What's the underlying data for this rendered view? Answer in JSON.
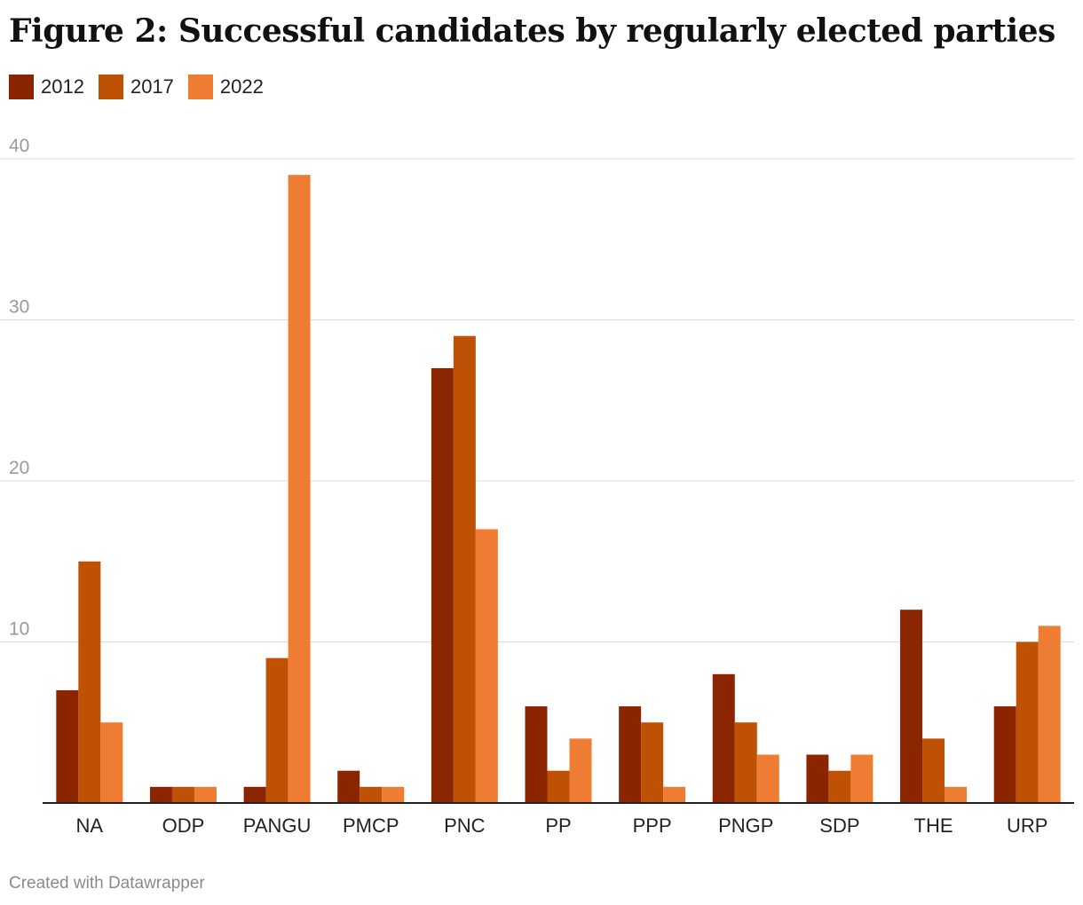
{
  "page": {
    "title": "Figure 2: Successful candidates by regularly elected parties",
    "footer": "Created with Datawrapper"
  },
  "chart_data": {
    "type": "bar",
    "categories": [
      "NA",
      "ODP",
      "PANGU",
      "PMCP",
      "PNC",
      "PP",
      "PPP",
      "PNGP",
      "SDP",
      "THE",
      "URP"
    ],
    "series": [
      {
        "name": "2012",
        "color": "#8b2500",
        "values": [
          7,
          1,
          1,
          2,
          27,
          6,
          6,
          8,
          3,
          12,
          6
        ]
      },
      {
        "name": "2017",
        "color": "#bf5104",
        "values": [
          15,
          1,
          9,
          1,
          29,
          2,
          5,
          5,
          2,
          4,
          10
        ]
      },
      {
        "name": "2022",
        "color": "#ee7c33",
        "values": [
          5,
          1,
          39,
          1,
          17,
          4,
          1,
          3,
          3,
          1,
          11
        ]
      }
    ],
    "ylim": [
      0,
      40
    ],
    "yticks": [
      "10",
      "20",
      "30",
      "40"
    ],
    "grid": true,
    "legend_position": "top-left"
  }
}
